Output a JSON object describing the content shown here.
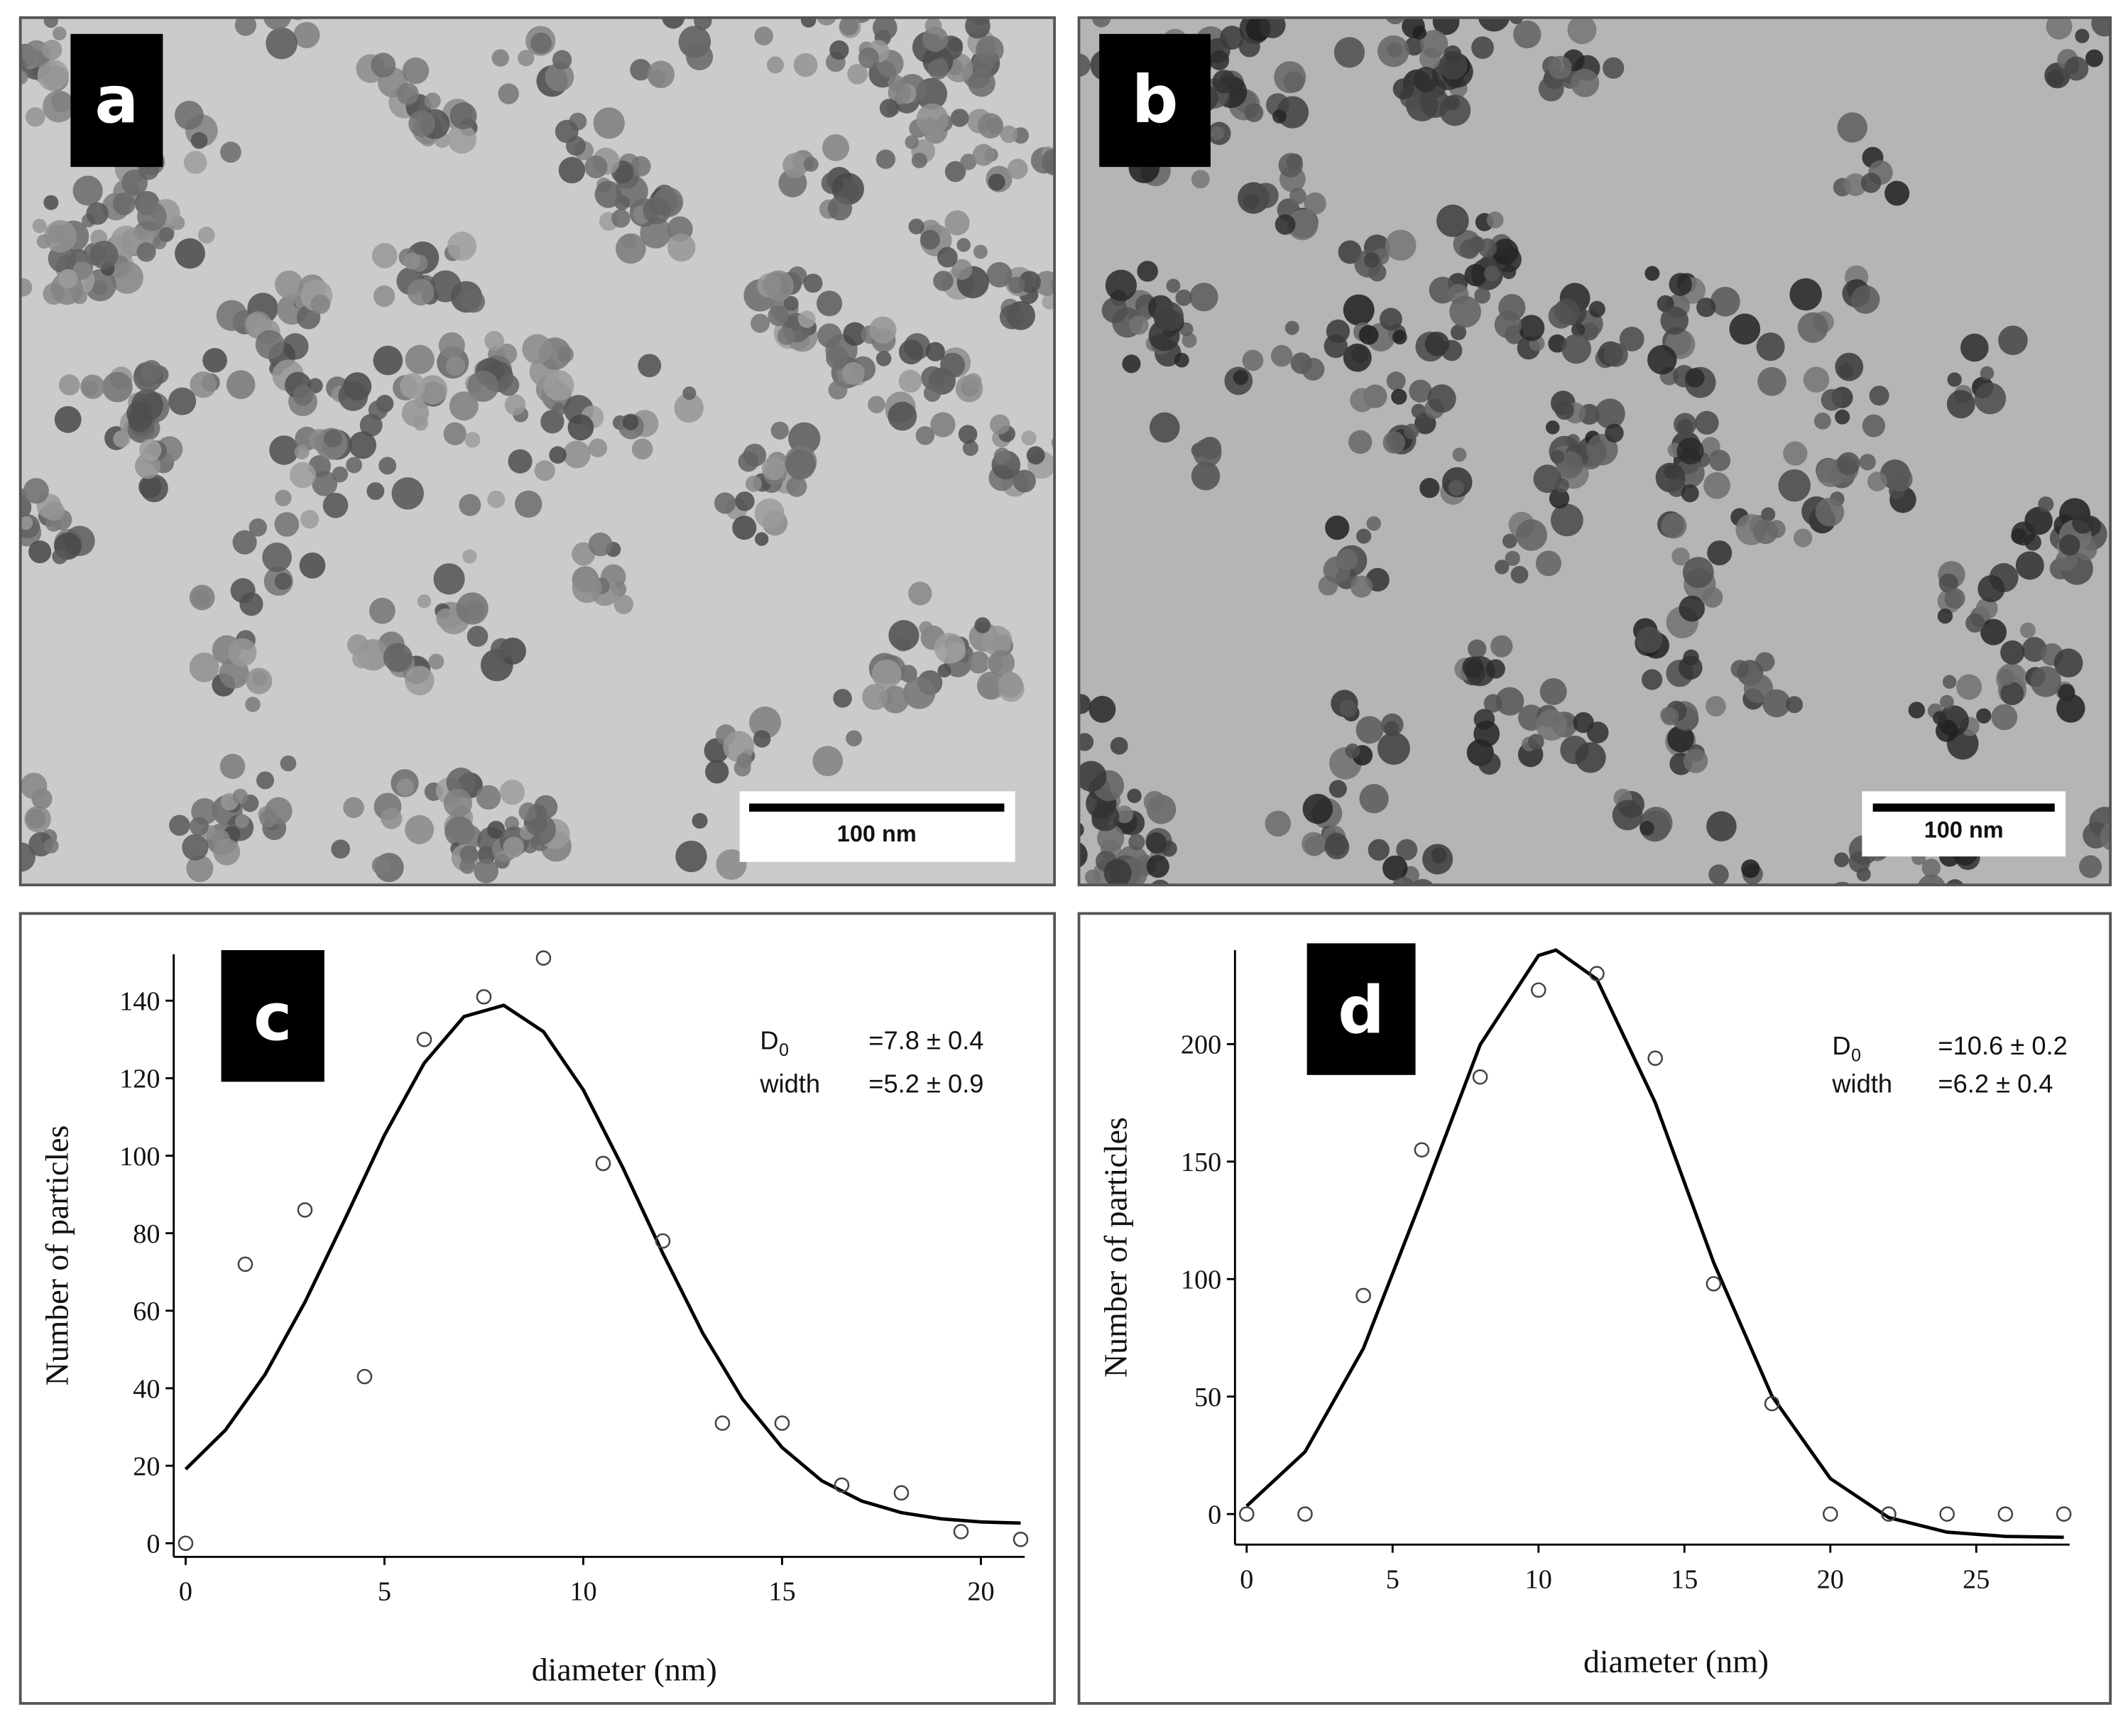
{
  "images": [
    {
      "panel_label": "a",
      "scale_bar": "100 nm"
    },
    {
      "panel_label": "b",
      "scale_bar": "100 nm"
    }
  ],
  "chart_data": [
    {
      "type": "scatter",
      "panel_label": "c",
      "x_label": "diameter (nm)",
      "y_label": "Number of particles",
      "xlim": [
        -0.3,
        21.1
      ],
      "ylim": [
        -3.5,
        152
      ],
      "xticks": [
        0,
        5,
        10,
        15,
        20
      ],
      "yticks": [
        0,
        20,
        40,
        60,
        80,
        100,
        120,
        140
      ],
      "points": {
        "x": [
          0,
          1.5,
          3,
          4.5,
          6,
          7.5,
          9,
          10.5,
          12,
          13.5,
          15,
          16.5,
          18,
          19.5,
          21
        ],
        "values": [
          0,
          72,
          86,
          43,
          130,
          141,
          151,
          98,
          78,
          31,
          31,
          15,
          13,
          3,
          1
        ]
      },
      "fit": {
        "x": [
          0,
          1,
          2,
          3,
          4,
          5,
          6,
          7,
          8,
          9,
          10,
          11,
          12,
          13,
          14,
          15,
          16,
          17,
          18,
          19,
          20,
          21
        ],
        "values": [
          19.1,
          29.2,
          43.6,
          62.2,
          83.5,
          105.3,
          123.9,
          135.9,
          138.8,
          132.0,
          117.0,
          96.8,
          74.8,
          54.3,
          37.3,
          24.7,
          16.1,
          10.9,
          7.9,
          6.3,
          5.5,
          5.2
        ]
      },
      "annotations": [
        {
          "label": "D",
          "subscript": "0",
          "text": "=7.8 ± 0.4"
        },
        {
          "label": "width",
          "text": "=5.2 ± 0.9"
        }
      ]
    },
    {
      "type": "scatter",
      "panel_label": "d",
      "x_label": "diameter (nm)",
      "y_label": "Number of particles",
      "xlim": [
        -0.4,
        28.2
      ],
      "ylim": [
        -13,
        240
      ],
      "xticks": [
        0,
        5,
        10,
        15,
        20,
        25
      ],
      "yticks": [
        0,
        50,
        100,
        150,
        200
      ],
      "points": {
        "x": [
          0,
          2,
          4,
          6,
          8,
          10,
          12,
          14,
          16,
          18,
          20,
          22,
          24,
          26,
          28
        ],
        "values": [
          0,
          0,
          93,
          155,
          186,
          223,
          230,
          194,
          98,
          47,
          0,
          0,
          0,
          0,
          0
        ]
      },
      "fit": {
        "x": [
          0,
          2,
          4,
          6,
          8,
          10,
          10.6,
          12,
          14,
          16,
          18,
          20,
          22,
          24,
          26,
          28
        ],
        "values": [
          3.4,
          26.5,
          70.5,
          134.2,
          199.7,
          237.7,
          240,
          227.6,
          175.1,
          107.1,
          50.2,
          15.1,
          -1.5,
          -7.7,
          -9.5,
          -9.9
        ]
      },
      "annotations": [
        {
          "label": "D",
          "subscript": "0",
          "text": "=10.6 ± 0.2"
        },
        {
          "label": "width",
          "text": "=6.2 ± 0.4"
        }
      ]
    }
  ]
}
